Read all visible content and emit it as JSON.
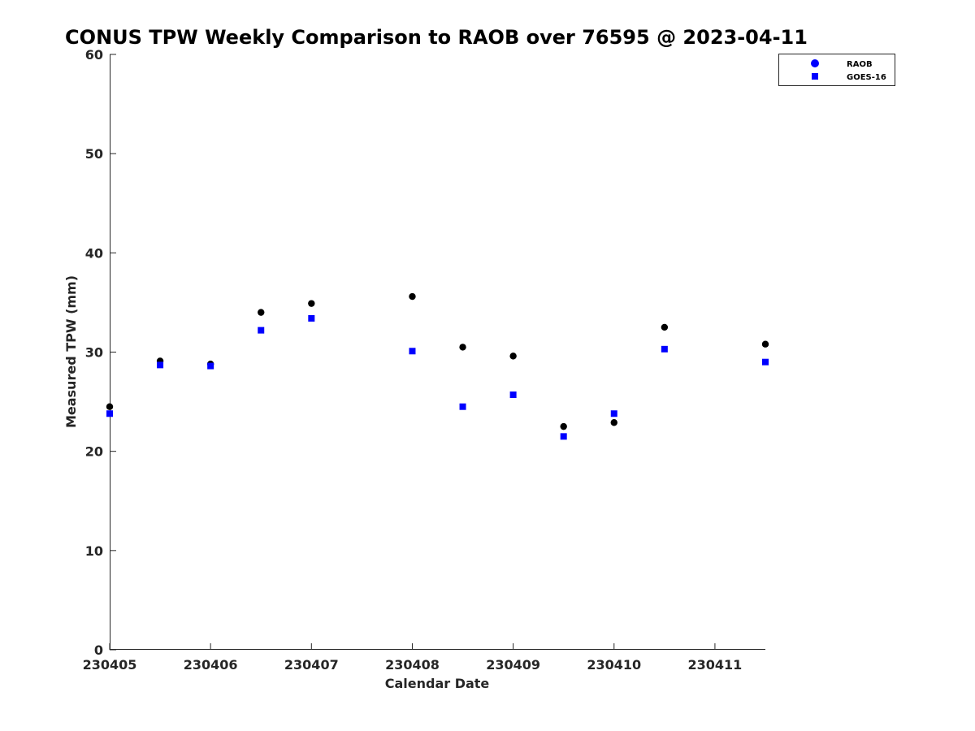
{
  "chart_data": {
    "type": "scatter",
    "title": "CONUS TPW Weekly Comparison to RAOB over 76595 @ 2023-04-11",
    "xlabel": "Calendar Date",
    "ylabel": "Measured TPW (mm)",
    "xlim": [
      230405,
      230411.5
    ],
    "ylim": [
      0,
      60
    ],
    "xticks": [
      {
        "value": 230405,
        "label": "230405"
      },
      {
        "value": 230406,
        "label": "230406"
      },
      {
        "value": 230407,
        "label": "230407"
      },
      {
        "value": 230408,
        "label": "230408"
      },
      {
        "value": 230409,
        "label": "230409"
      },
      {
        "value": 230410,
        "label": "230410"
      },
      {
        "value": 230411,
        "label": "230411"
      }
    ],
    "yticks": [
      {
        "value": 0,
        "label": "0"
      },
      {
        "value": 10,
        "label": "10"
      },
      {
        "value": 20,
        "label": "20"
      },
      {
        "value": 30,
        "label": "30"
      },
      {
        "value": 40,
        "label": "40"
      },
      {
        "value": 50,
        "label": "50"
      },
      {
        "value": 60,
        "label": "60"
      }
    ],
    "grid": false,
    "legend_position": "top-right",
    "series": [
      {
        "name": "RAOB",
        "marker": "circle",
        "color": "#000000",
        "legend_color": "#0000ff",
        "x": [
          230405,
          230405.5,
          230406,
          230406.5,
          230407,
          230408,
          230408.5,
          230409,
          230409.5,
          230410,
          230410.5,
          230411.5
        ],
        "y": [
          24.5,
          29.1,
          28.8,
          34.0,
          34.9,
          35.6,
          30.5,
          29.6,
          22.5,
          22.9,
          32.5,
          30.8
        ]
      },
      {
        "name": "GOES-16",
        "marker": "square",
        "color": "#0000ff",
        "legend_color": "#0000ff",
        "x": [
          230405,
          230405.5,
          230406,
          230406.5,
          230407,
          230408,
          230408.5,
          230409,
          230409.5,
          230410,
          230410.5,
          230411.5
        ],
        "y": [
          23.8,
          28.7,
          28.6,
          32.2,
          33.4,
          30.1,
          24.5,
          25.7,
          21.5,
          23.8,
          30.3,
          29.0
        ]
      }
    ]
  }
}
